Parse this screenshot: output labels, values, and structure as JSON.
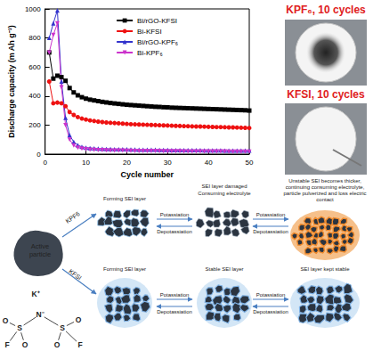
{
  "chart_data": {
    "type": "line",
    "xlabel": "Cycle number",
    "ylabel": "Discharge capacity (m Ah g⁻¹)",
    "x": [
      1,
      2,
      3,
      4,
      5,
      6,
      7,
      8,
      9,
      10,
      11,
      12,
      13,
      14,
      15,
      16,
      17,
      18,
      19,
      20,
      21,
      22,
      23,
      24,
      25,
      26,
      27,
      28,
      29,
      30,
      31,
      32,
      33,
      34,
      35,
      36,
      37,
      38,
      39,
      40,
      41,
      42,
      43,
      44,
      45,
      46,
      47,
      48,
      49,
      50
    ],
    "xlim": [
      0,
      50
    ],
    "xticks": [
      0,
      10,
      20,
      30,
      40,
      50
    ],
    "ylim": [
      0,
      1000
    ],
    "yticks": [
      0,
      200,
      400,
      600,
      800,
      1000
    ],
    "grid": false,
    "legend": "upper right",
    "series": [
      {
        "name": "Bi/rGO-KFSI",
        "color": "#000000",
        "marker": "square",
        "values": [
          700,
          520,
          540,
          530,
          505,
          455,
          425,
          405,
          392,
          382,
          375,
          370,
          365,
          360,
          356,
          352,
          349,
          346,
          343,
          340,
          338,
          336,
          334,
          332,
          330,
          328,
          326,
          325,
          323,
          322,
          320,
          319,
          318,
          317,
          316,
          315,
          314,
          313,
          312,
          311,
          310,
          309,
          308,
          307,
          306,
          305,
          304,
          303,
          302,
          300
        ]
      },
      {
        "name": "Bi-KFSI",
        "color": "#ee1111",
        "marker": "circle",
        "values": [
          500,
          350,
          355,
          350,
          330,
          290,
          270,
          255,
          245,
          238,
          232,
          228,
          224,
          221,
          218,
          216,
          214,
          212,
          210,
          208,
          206,
          205,
          204,
          203,
          202,
          201,
          200,
          199,
          198,
          197,
          196,
          195,
          194,
          193,
          192,
          191,
          190,
          190,
          189,
          188,
          187,
          186,
          186,
          185,
          184,
          184,
          183,
          182,
          181,
          180
        ]
      },
      {
        "name": "Bi/rGO-KPF₆",
        "color": "#3333cc",
        "marker": "triangle",
        "values": [
          800,
          900,
          990,
          500,
          250,
          130,
          85,
          62,
          50,
          45,
          42,
          40,
          38,
          37,
          36,
          35,
          34,
          34,
          33,
          33,
          32,
          32,
          31,
          31,
          30,
          30,
          30,
          29,
          29,
          29,
          28,
          28,
          28,
          28,
          27,
          27,
          27,
          27,
          26,
          26,
          26,
          26,
          26,
          25,
          25,
          25,
          25,
          25,
          25,
          25
        ]
      },
      {
        "name": "Bi-KPF₆",
        "color": "#cc33cc",
        "marker": "triangle_down",
        "values": [
          700,
          820,
          900,
          460,
          200,
          100,
          60,
          45,
          38,
          34,
          31,
          29,
          28,
          27,
          26,
          25,
          25,
          24,
          24,
          23,
          23,
          22,
          22,
          22,
          21,
          21,
          21,
          21,
          20,
          20,
          20,
          20,
          20,
          19,
          19,
          19,
          19,
          19,
          18,
          18,
          18,
          18,
          18,
          18,
          17,
          17,
          17,
          17,
          17,
          17
        ]
      }
    ]
  },
  "photos": [
    {
      "label": "KPF₆, 10 cycles"
    },
    {
      "label": "KFSI, 10 cycles"
    }
  ],
  "diagram": {
    "particle": "Active particle",
    "molecule": [
      "K⁺",
      "N⁻",
      "S",
      "S",
      "O",
      "O",
      "O",
      "O",
      "F",
      "F"
    ],
    "paths": [
      {
        "label": "KPF6",
        "stages": [
          [
            "Forming SEI layer"
          ],
          [
            "SEI layer damaged",
            "Consuming electrolyte"
          ],
          [
            "Unstable SEI becomes thicker,",
            "continuing consuming electrolyte,",
            "particle pulverized and loss electric",
            "contact"
          ]
        ],
        "steps": [
          [
            "Potassiation",
            "Depotassiation"
          ],
          [
            "Potassiation",
            "Depotassiation"
          ]
        ]
      },
      {
        "label": "KFSI",
        "stages": [
          [
            "Forming SEI layer"
          ],
          [
            "Stable SEI layer"
          ],
          [
            "SEI layer kept stable"
          ]
        ],
        "steps": [
          [
            "Potassiation",
            "Depotassiation"
          ],
          [
            "Potassiation",
            "Depotassiation"
          ]
        ]
      }
    ]
  }
}
